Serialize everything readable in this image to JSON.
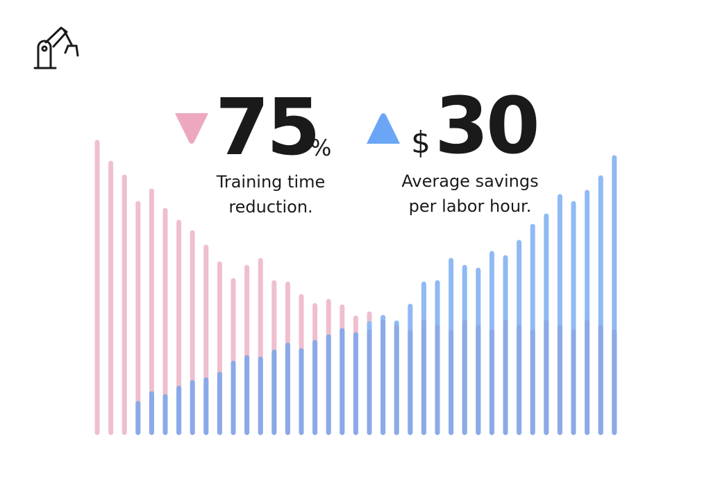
{
  "stats": [
    {
      "number": "75",
      "unit": "%",
      "caption": [
        "Training time",
        "reduction."
      ]
    },
    {
      "unit": "$",
      "number": "30",
      "caption": [
        "Average savings",
        "per labor hour."
      ]
    }
  ]
}
